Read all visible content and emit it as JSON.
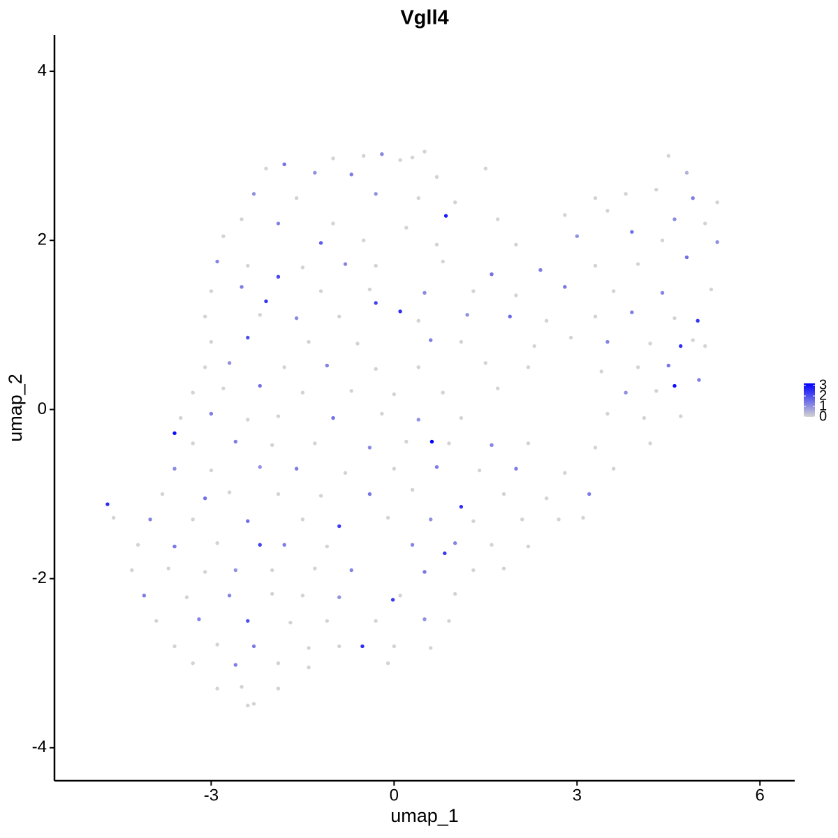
{
  "chart_data": {
    "type": "scatter",
    "title": "Vgll4",
    "xlabel": "umap_1",
    "ylabel": "umap_2",
    "xlim": [
      -5.57,
      6.57
    ],
    "ylim": [
      -4.39,
      4.43
    ],
    "xticks": [
      -3,
      0,
      3,
      6
    ],
    "yticks": [
      -4,
      -2,
      0,
      2,
      4
    ],
    "color_low": "#d3d3d3",
    "color_high": "#0000ff",
    "colorbar_lim": [
      0,
      3.2
    ],
    "colorbar_ticks": [
      0,
      1,
      2,
      3
    ],
    "x": [
      -0.5,
      -0.2,
      0.1,
      0.5,
      -1.0,
      -1.8,
      0.3,
      -2.1,
      -1.3,
      -0.7,
      0.7,
      1.5,
      4.5,
      4.8,
      -2.3,
      -1.6,
      -0.3,
      0.4,
      1.0,
      3.3,
      3.8,
      4.3,
      4.9,
      5.3,
      -2.5,
      -1.9,
      -1.0,
      0.2,
      1.7,
      2.8,
      3.5,
      4.6,
      5.1,
      -2.8,
      -1.2,
      -0.5,
      0.7,
      2.0,
      3.0,
      3.9,
      4.4,
      5.3,
      -2.9,
      -2.4,
      -1.5,
      -0.8,
      -0.3,
      0.8,
      1.6,
      2.4,
      3.3,
      4.0,
      4.8,
      -3.0,
      -2.5,
      -1.2,
      -0.4,
      0.5,
      1.3,
      2.0,
      2.8,
      3.6,
      4.4,
      5.2,
      -3.1,
      -2.2,
      -1.6,
      -0.9,
      0.4,
      1.2,
      1.9,
      2.5,
      3.3,
      3.9,
      4.6,
      -3.0,
      -2.4,
      -1.4,
      -0.6,
      0.6,
      1.1,
      2.3,
      2.9,
      3.5,
      4.2,
      4.9,
      5.1,
      -3.1,
      -2.7,
      -1.8,
      -1.1,
      -0.3,
      0.4,
      1.5,
      2.2,
      3.4,
      4.0,
      4.5,
      -3.3,
      -2.8,
      -2.2,
      -1.5,
      -0.7,
      0.0,
      0.8,
      1.7,
      3.8,
      4.3,
      5.0,
      -3.5,
      -3.0,
      -2.4,
      -1.9,
      -1.0,
      -0.2,
      0.4,
      1.1,
      3.5,
      4.1,
      4.7,
      -3.3,
      -2.6,
      -2.0,
      -1.3,
      -0.4,
      0.2,
      0.9,
      1.6,
      2.2,
      3.3,
      4.2,
      -3.6,
      -3.0,
      -2.2,
      -1.6,
      -0.8,
      0.0,
      0.7,
      1.4,
      2.0,
      2.8,
      3.6,
      -3.8,
      -3.1,
      -2.7,
      -1.9,
      -1.2,
      -0.4,
      0.3,
      1.8,
      2.5,
      3.2,
      -4.6,
      -4.0,
      -3.3,
      -2.4,
      -1.5,
      -0.1,
      0.6,
      1.3,
      2.1,
      2.7,
      3.1,
      -4.2,
      -3.6,
      -2.9,
      -1.8,
      -1.1,
      0.3,
      1.0,
      1.6,
      2.2,
      -4.3,
      -3.7,
      -3.1,
      -2.6,
      -2.0,
      -1.3,
      -0.7,
      0.5,
      1.3,
      1.8,
      -4.1,
      -3.4,
      -2.7,
      -2.0,
      -1.5,
      -0.9,
      0.1,
      1.0,
      -3.9,
      -3.2,
      -2.4,
      -1.7,
      -1.1,
      -0.3,
      0.5,
      0.9,
      -3.6,
      -2.9,
      -2.3,
      -1.4,
      -0.9,
      0.0,
      0.6,
      -3.3,
      -2.6,
      -1.9,
      -1.4,
      -0.1,
      -2.9,
      -2.5,
      -1.9,
      -2.4,
      -2.3,
      -4.7,
      -3.6,
      0.62,
      4.6,
      0.85,
      0.1,
      -0.3,
      -2.1,
      -1.9,
      1.1,
      0.83,
      -0.52,
      -2.2,
      4.7,
      4.98,
      -0.9,
      -0.02
    ],
    "values": [
      3.0,
      3.02,
      2.95,
      3.05,
      2.97,
      2.9,
      2.98,
      2.85,
      2.8,
      2.78,
      2.75,
      2.85,
      3.0,
      2.8,
      2.55,
      2.5,
      2.55,
      2.5,
      2.45,
      2.5,
      2.55,
      2.6,
      2.5,
      2.45,
      2.25,
      2.2,
      2.2,
      2.15,
      2.25,
      2.3,
      2.35,
      2.25,
      2.2,
      2.05,
      1.97,
      2.0,
      1.95,
      1.95,
      2.05,
      2.1,
      2.0,
      1.98,
      1.75,
      1.7,
      1.68,
      1.72,
      1.7,
      1.75,
      1.6,
      1.65,
      1.7,
      1.72,
      1.8,
      1.4,
      1.45,
      1.4,
      1.42,
      1.38,
      1.4,
      1.35,
      1.45,
      1.4,
      1.38,
      1.42,
      1.1,
      1.12,
      1.08,
      1.1,
      1.05,
      1.12,
      1.1,
      1.05,
      1.1,
      1.15,
      1.08,
      0.8,
      0.85,
      0.8,
      0.78,
      0.82,
      0.8,
      0.75,
      0.85,
      0.8,
      0.78,
      0.82,
      0.75,
      0.5,
      0.55,
      0.5,
      0.52,
      0.48,
      0.5,
      0.55,
      0.5,
      0.45,
      0.5,
      0.52,
      0.2,
      0.25,
      0.28,
      0.2,
      0.22,
      0.18,
      0.2,
      0.25,
      0.2,
      0.22,
      0.35,
      -0.1,
      -0.05,
      -0.12,
      -0.08,
      -0.1,
      -0.05,
      -0.12,
      -0.1,
      -0.05,
      -0.1,
      -0.08,
      -0.4,
      -0.38,
      -0.42,
      -0.4,
      -0.45,
      -0.38,
      -0.4,
      -0.42,
      -0.4,
      -0.45,
      -0.4,
      -0.7,
      -0.72,
      -0.68,
      -0.7,
      -0.75,
      -0.7,
      -0.68,
      -0.72,
      -0.7,
      -0.75,
      -0.7,
      -1.0,
      -1.05,
      -0.98,
      -1.0,
      -1.02,
      -1.0,
      -0.95,
      -1.0,
      -1.05,
      -1.0,
      -1.28,
      -1.3,
      -1.3,
      -1.32,
      -1.3,
      -1.28,
      -1.3,
      -1.32,
      -1.3,
      -1.3,
      -1.28,
      -1.6,
      -1.62,
      -1.58,
      -1.6,
      -1.62,
      -1.6,
      -1.58,
      -1.6,
      -1.62,
      -1.9,
      -1.88,
      -1.92,
      -1.9,
      -1.9,
      -1.88,
      -1.9,
      -1.92,
      -1.9,
      -1.88,
      -2.2,
      -2.22,
      -2.2,
      -2.18,
      -2.2,
      -2.22,
      -2.2,
      -2.18,
      -2.5,
      -2.48,
      -2.5,
      -2.52,
      -2.5,
      -2.5,
      -2.48,
      -2.5,
      -2.8,
      -2.78,
      -2.8,
      -2.82,
      -2.8,
      -2.8,
      -2.82,
      -3.0,
      -3.02,
      -3.0,
      -3.05,
      -3.0,
      -3.3,
      -3.28,
      -3.3,
      -3.5,
      -3.48,
      -1.12,
      -0.28,
      -0.38,
      0.28,
      2.29,
      1.16,
      1.26,
      1.28,
      1.57,
      -1.15,
      -1.7,
      -2.8,
      -1.6,
      0.75,
      1.05,
      -1.38,
      -2.25
    ],
    "expression": [
      0,
      1.2,
      0,
      0,
      0,
      1.5,
      0,
      0,
      1,
      1.3,
      0,
      0,
      0,
      0.5,
      1,
      0,
      1,
      0,
      0,
      0,
      0,
      0,
      1.3,
      0,
      0,
      1.2,
      0,
      0,
      0,
      0,
      0,
      1.1,
      0,
      0,
      1.8,
      0,
      0,
      0,
      1,
      1.5,
      0,
      1,
      1.2,
      0,
      0,
      1.2,
      0,
      0,
      1.5,
      1.3,
      0,
      0,
      1.5,
      0,
      1.3,
      0,
      0,
      1.1,
      0,
      0,
      1.4,
      0,
      1.2,
      0,
      0,
      0,
      1.1,
      0,
      0,
      1,
      1.6,
      0,
      0,
      1.3,
      0,
      0,
      2,
      0,
      0,
      1.3,
      0,
      0,
      0,
      1.2,
      0,
      0,
      0,
      0,
      1,
      0,
      1.2,
      0,
      0,
      0,
      0,
      0,
      0,
      1.4,
      0,
      0,
      1.5,
      0,
      0,
      0,
      0,
      0,
      1,
      0,
      1.3,
      0,
      1.3,
      0,
      0,
      1.5,
      0,
      1,
      0,
      0,
      0,
      0,
      0,
      1.3,
      0,
      0,
      1.1,
      0,
      0,
      1.2,
      0,
      0,
      0,
      1.1,
      0,
      1,
      1.3,
      0,
      0,
      1.3,
      0,
      1.3,
      0,
      0,
      0,
      1.5,
      0,
      0,
      0,
      1.4,
      0,
      0,
      0,
      1.3,
      0,
      1.2,
      0,
      1.5,
      0,
      0,
      1,
      0,
      0,
      0,
      0,
      0,
      1.4,
      0,
      1.3,
      0,
      1.2,
      1.2,
      0,
      0,
      0,
      0,
      0,
      1,
      0,
      0,
      1.2,
      1.4,
      0,
      0,
      1.3,
      0,
      1.2,
      0,
      0,
      1,
      0,
      0,
      0,
      1.2,
      2,
      0,
      0,
      0,
      1,
      0,
      0,
      0,
      1.3,
      0,
      0,
      0,
      0,
      0,
      1.3,
      0,
      0,
      0,
      0,
      0,
      0,
      0,
      0,
      2.5,
      3,
      3.2,
      3,
      2.8,
      2.5,
      2.2,
      2.4,
      2.1,
      2.5,
      2.4,
      2.5,
      2.2,
      2.5,
      2.4,
      2.3,
      2.3
    ]
  }
}
